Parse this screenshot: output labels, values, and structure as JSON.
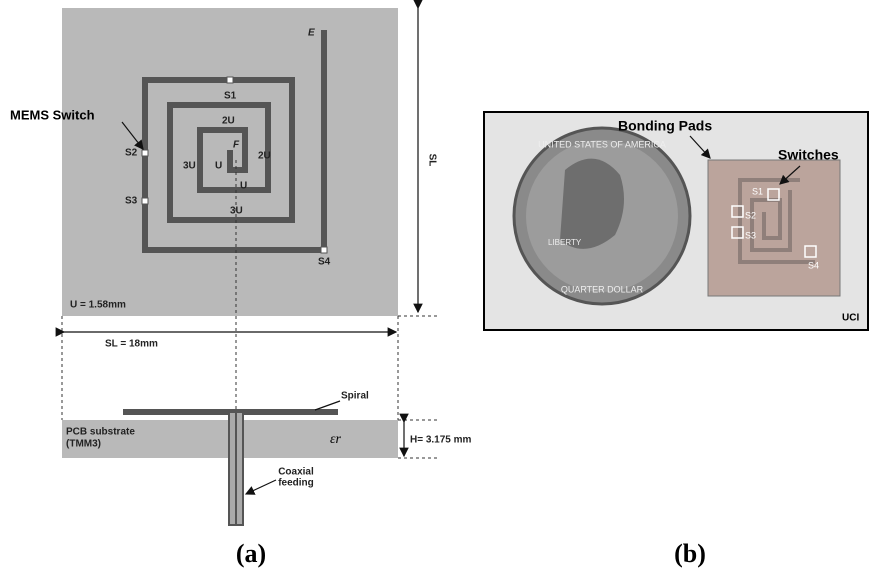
{
  "panel_a": {
    "switch_callout": "MEMS Switch",
    "spiral_labels": {
      "end": "E",
      "feed": "F",
      "s1": "S1",
      "s2": "S2",
      "s3": "S3",
      "s4": "S4",
      "seg_2u_top": "2U",
      "seg_2u_right": "2U",
      "seg_3u_left": "3U",
      "seg_3u_bottom": "3U",
      "seg_u_left": "U",
      "seg_u_bottom": "U"
    },
    "side_length": "SL",
    "unit_length": "U = 1.58mm",
    "side_length_value": "SL = 18mm",
    "spiral": "Spiral",
    "substrate": [
      "PCB substrate",
      "(TMM3)"
    ],
    "permittivity": "εr",
    "height": "H= 3.175 mm",
    "feed": [
      "Coaxial",
      "feeding"
    ],
    "caption": "(a)"
  },
  "panel_b": {
    "bonding_pads": "Bonding Pads",
    "switches": "Switches",
    "switch_labels": [
      "S1",
      "S2",
      "S3",
      "S4"
    ],
    "coin_text": [
      "UNITED STATES OF AMERICA",
      "LIBERTY",
      "QUARTER DOLLAR"
    ],
    "credit": "UCI",
    "caption": "(b)"
  }
}
